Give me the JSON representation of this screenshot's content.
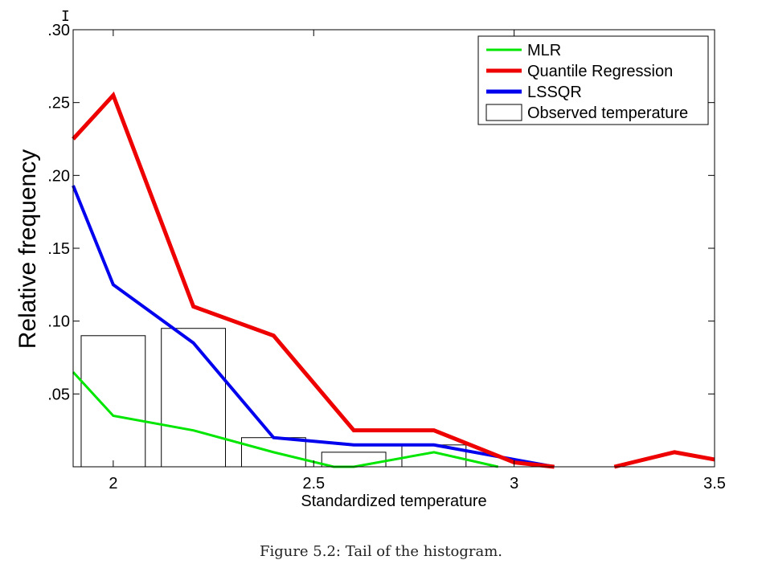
{
  "cursor_glyph": "I",
  "caption": "Figure 5.2: Tail of the histogram.",
  "chart_data": {
    "type": "line",
    "xlabel": "Standardized temperature",
    "ylabel": "Relative frequency",
    "xlim": [
      1.9,
      3.5
    ],
    "ylim": [
      0.0,
      0.3
    ],
    "xticks": [
      2,
      2.5,
      3,
      3.5
    ],
    "xtick_labels": [
      "2",
      "2.5",
      "3",
      "3.5"
    ],
    "yticks": [
      0.05,
      0.1,
      0.15,
      0.2,
      0.25,
      0.3
    ],
    "ytick_labels": [
      ".05",
      ".10",
      ".15",
      ".20",
      ".25",
      ".30"
    ],
    "grid": false,
    "legend_position": "top-right",
    "bars": {
      "name": "Observed temperature",
      "width": 0.16,
      "color": "#000000",
      "points": [
        {
          "x": 2.0,
          "y": 0.09
        },
        {
          "x": 2.2,
          "y": 0.095
        },
        {
          "x": 2.4,
          "y": 0.02
        },
        {
          "x": 2.6,
          "y": 0.01
        },
        {
          "x": 2.8,
          "y": 0.015
        }
      ]
    },
    "series": [
      {
        "name": "MLR",
        "color": "#00e600",
        "x": [
          1.9,
          2.0,
          2.2,
          2.4,
          2.55,
          2.6,
          2.8,
          2.96
        ],
        "y": [
          0.065,
          0.035,
          0.025,
          0.01,
          0.0,
          0.0,
          0.01,
          0.0
        ]
      },
      {
        "name": "Quantile Regression",
        "color": "#ee0000",
        "x": [
          1.9,
          2.0,
          2.2,
          2.4,
          2.6,
          2.8,
          3.0,
          3.1
        ],
        "y": [
          0.225,
          0.255,
          0.11,
          0.09,
          0.025,
          0.025,
          0.003,
          0.0
        ]
      },
      {
        "name": "Quantile Regression",
        "color": "#ee0000",
        "x": [
          3.25,
          3.4,
          3.5
        ],
        "y": [
          0.0,
          0.01,
          0.005
        ]
      },
      {
        "name": "LSSQR",
        "color": "#0000ee",
        "x": [
          1.9,
          2.0,
          2.2,
          2.4,
          2.6,
          2.8,
          3.0,
          3.1
        ],
        "y": [
          0.193,
          0.125,
          0.085,
          0.02,
          0.015,
          0.015,
          0.005,
          0.0
        ]
      }
    ],
    "legend": [
      {
        "label": "MLR",
        "color": "#00e600",
        "kind": "line"
      },
      {
        "label": "Quantile Regression",
        "color": "#ee0000",
        "kind": "line"
      },
      {
        "label": "LSSQR",
        "color": "#0000ee",
        "kind": "line"
      },
      {
        "label": "Observed temperature",
        "color": "#000000",
        "kind": "box"
      }
    ]
  }
}
